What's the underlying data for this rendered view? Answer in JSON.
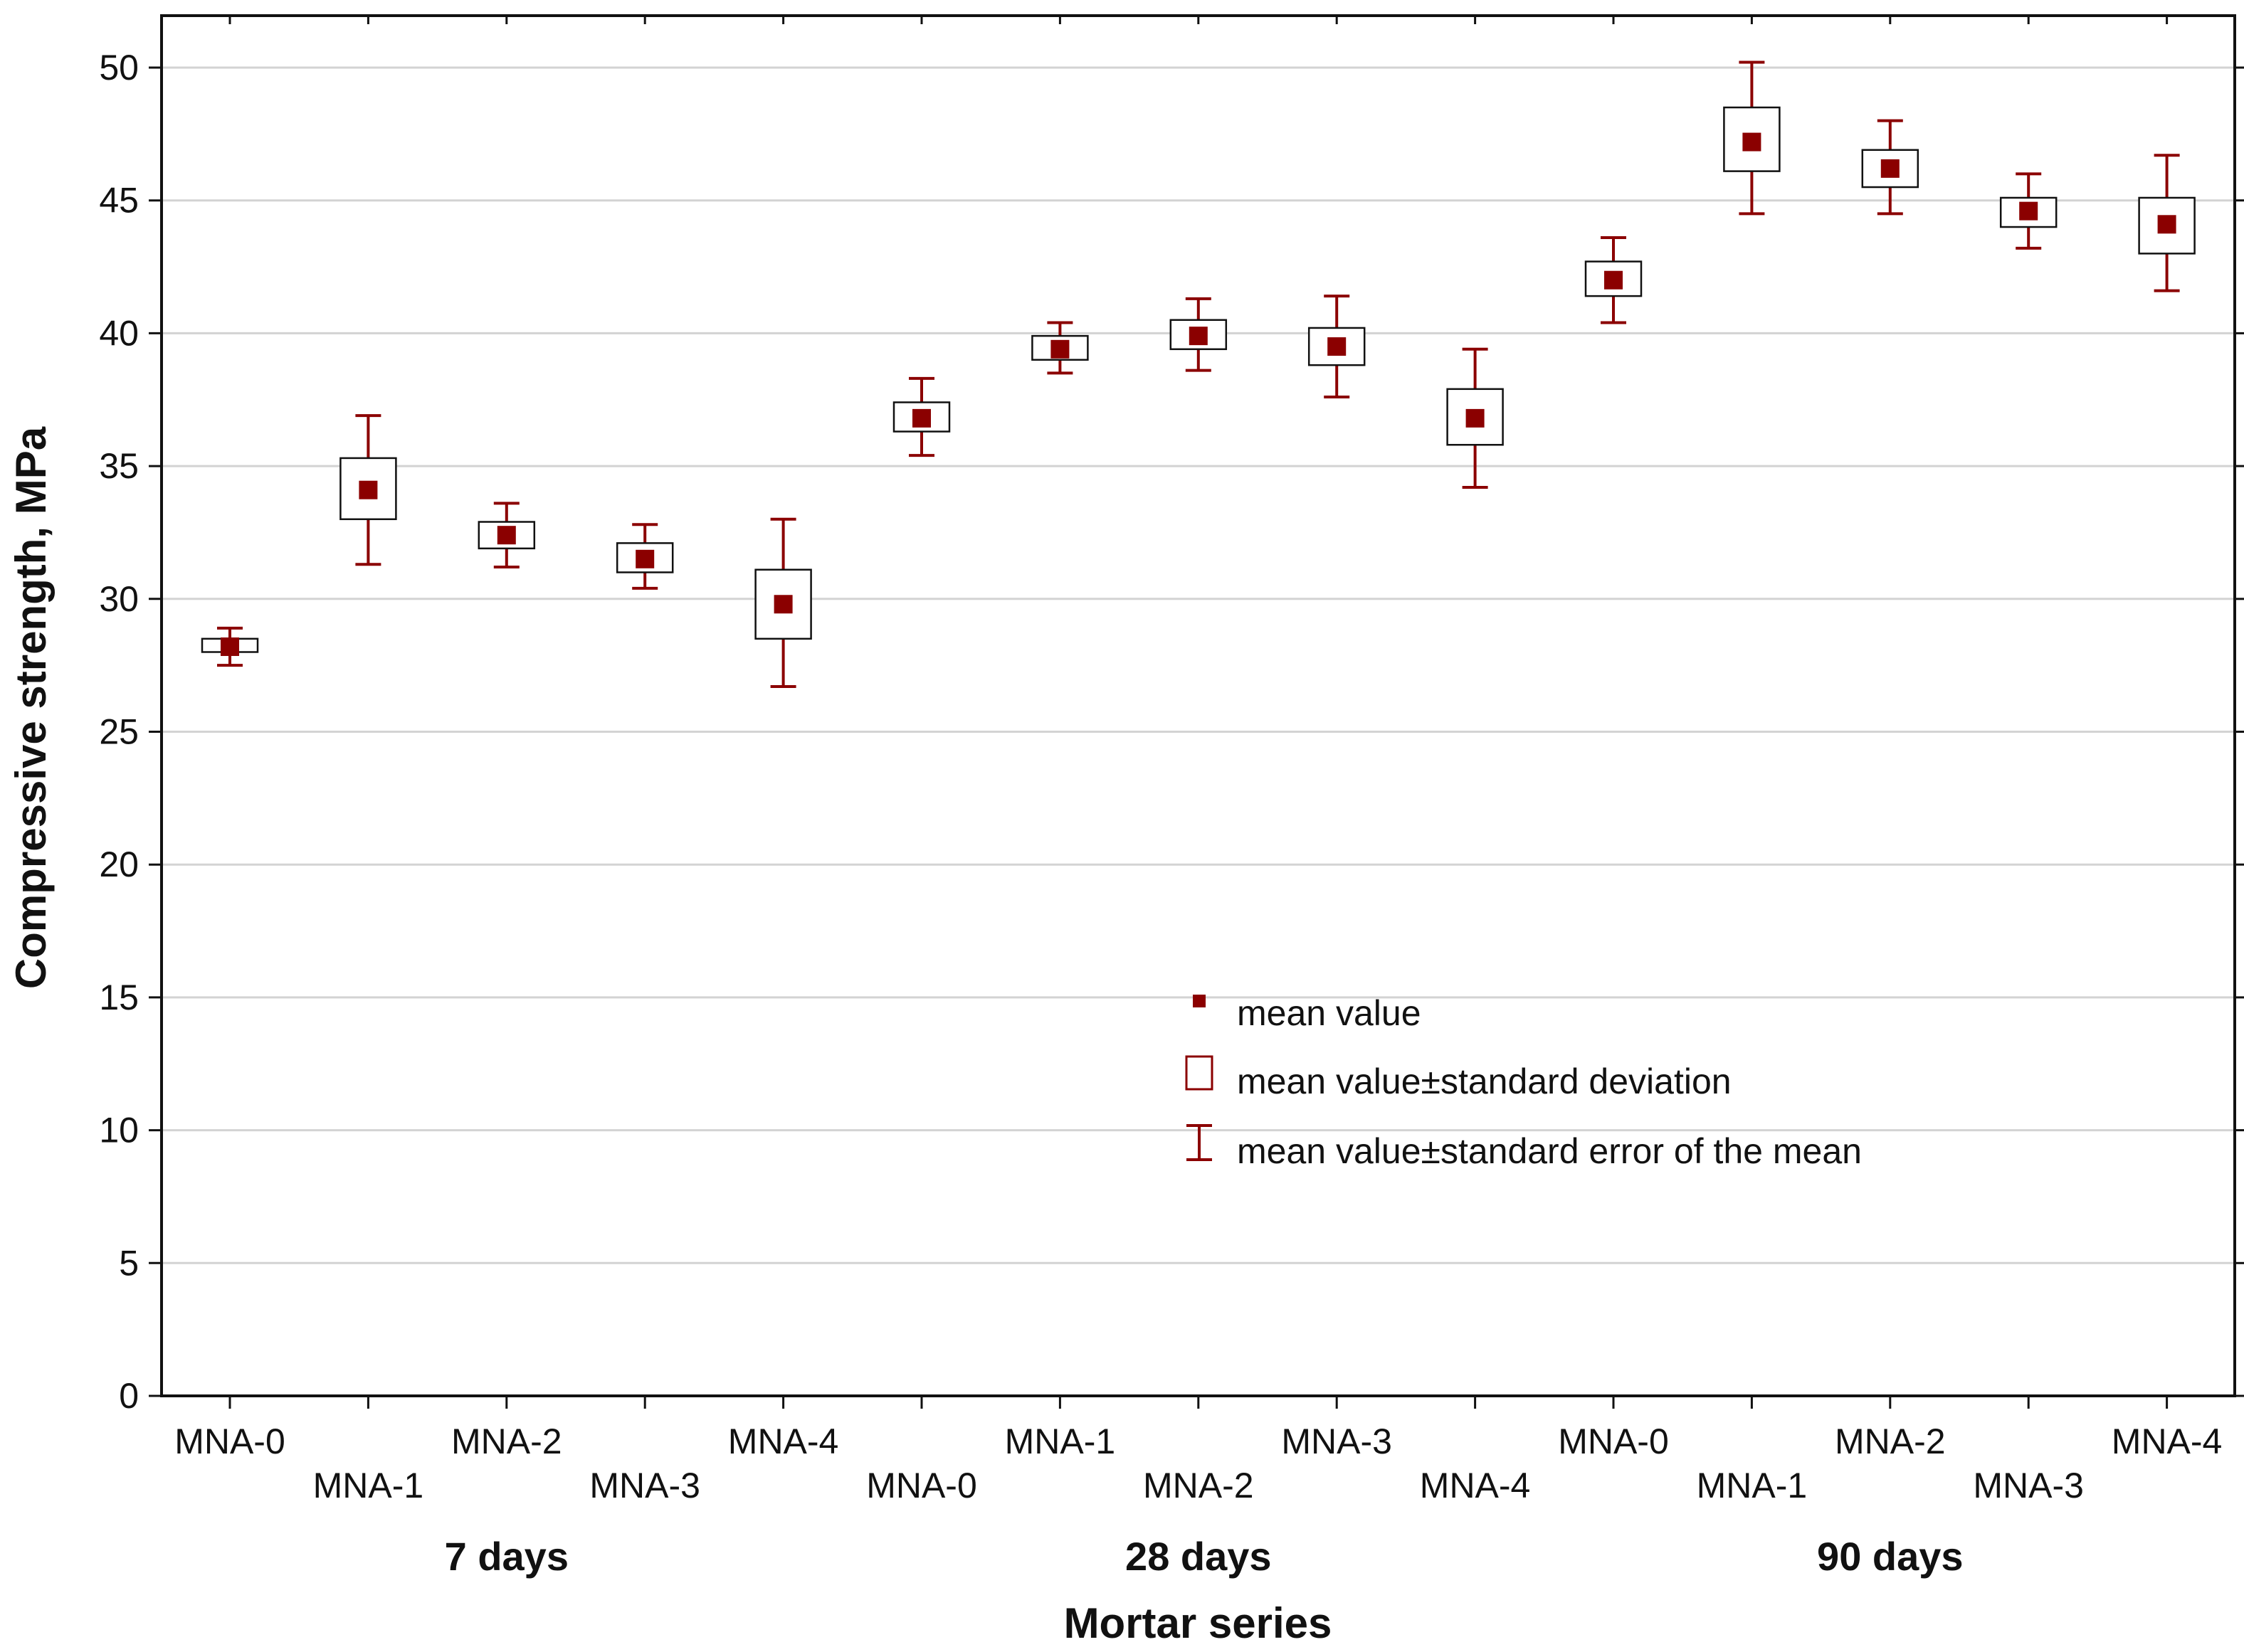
{
  "chart_data": {
    "type": "box-whisker",
    "title": "",
    "xlabel": "Mortar series",
    "ylabel": "Compressive strength, MPa",
    "ylim": [
      0,
      50
    ],
    "yticks": [
      0,
      5,
      10,
      15,
      20,
      25,
      30,
      35,
      40,
      45,
      50
    ],
    "yticks_labels": [
      "0",
      "5",
      "10",
      "15",
      "20",
      "25",
      "30",
      "35",
      "40",
      "45",
      "50"
    ],
    "grid": true,
    "colors": {
      "series": "#8b0000",
      "grid": "#d3d3d3",
      "axis": "#111111"
    },
    "groups": [
      {
        "label": "7 days",
        "items": [
          {
            "label": "MNA-0",
            "mean": 28.2,
            "sd": [
              28.0,
              28.5
            ],
            "se": [
              27.5,
              28.9
            ]
          },
          {
            "label": "MNA-1",
            "mean": 34.1,
            "sd": [
              33.0,
              35.3
            ],
            "se": [
              31.3,
              36.9
            ]
          },
          {
            "label": "MNA-2",
            "mean": 32.4,
            "sd": [
              31.9,
              32.9
            ],
            "se": [
              31.2,
              33.6
            ]
          },
          {
            "label": "MNA-3",
            "mean": 31.5,
            "sd": [
              31.0,
              32.1
            ],
            "se": [
              30.4,
              32.8
            ]
          },
          {
            "label": "MNA-4",
            "mean": 29.8,
            "sd": [
              28.5,
              31.1
            ],
            "se": [
              26.7,
              33.0
            ]
          }
        ]
      },
      {
        "label": "28 days",
        "items": [
          {
            "label": "MNA-0",
            "mean": 36.8,
            "sd": [
              36.3,
              37.4
            ],
            "se": [
              35.4,
              38.3
            ]
          },
          {
            "label": "MNA-1",
            "mean": 39.4,
            "sd": [
              39.0,
              39.9
            ],
            "se": [
              38.5,
              40.4
            ]
          },
          {
            "label": "MNA-2",
            "mean": 39.9,
            "sd": [
              39.4,
              40.5
            ],
            "se": [
              38.6,
              41.3
            ]
          },
          {
            "label": "MNA-3",
            "mean": 39.5,
            "sd": [
              38.8,
              40.2
            ],
            "se": [
              37.6,
              41.4
            ]
          },
          {
            "label": "MNA-4",
            "mean": 36.8,
            "sd": [
              35.8,
              37.9
            ],
            "se": [
              34.2,
              39.4
            ]
          }
        ]
      },
      {
        "label": "90 days",
        "items": [
          {
            "label": "MNA-0",
            "mean": 42.0,
            "sd": [
              41.4,
              42.7
            ],
            "se": [
              40.4,
              43.6
            ]
          },
          {
            "label": "MNA-1",
            "mean": 47.2,
            "sd": [
              46.1,
              48.5
            ],
            "se": [
              44.5,
              50.2
            ]
          },
          {
            "label": "MNA-2",
            "mean": 46.2,
            "sd": [
              45.5,
              46.9
            ],
            "se": [
              44.5,
              48.0
            ]
          },
          {
            "label": "MNA-3",
            "mean": 44.6,
            "sd": [
              44.0,
              45.1
            ],
            "se": [
              43.2,
              46.0
            ]
          },
          {
            "label": "MNA-4",
            "mean": 44.1,
            "sd": [
              43.0,
              45.1
            ],
            "se": [
              41.6,
              46.7
            ]
          }
        ]
      }
    ],
    "legend": {
      "placement": "center-right",
      "entries": [
        {
          "symbol": "mean-marker",
          "label": "mean value"
        },
        {
          "symbol": "sd-box",
          "label": "mean value±standard deviation"
        },
        {
          "symbol": "se-whisker",
          "label": "mean value±standard error of the mean"
        }
      ]
    }
  }
}
